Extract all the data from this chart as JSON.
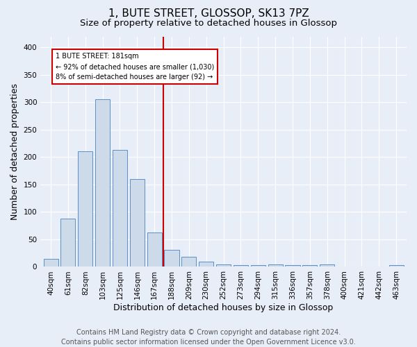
{
  "title1": "1, BUTE STREET, GLOSSOP, SK13 7PZ",
  "title2": "Size of property relative to detached houses in Glossop",
  "xlabel": "Distribution of detached houses by size in Glossop",
  "ylabel": "Number of detached properties",
  "footer1": "Contains HM Land Registry data © Crown copyright and database right 2024.",
  "footer2": "Contains public sector information licensed under the Open Government Licence v3.0.",
  "bin_labels": [
    "40sqm",
    "61sqm",
    "82sqm",
    "103sqm",
    "125sqm",
    "146sqm",
    "167sqm",
    "188sqm",
    "209sqm",
    "230sqm",
    "252sqm",
    "273sqm",
    "294sqm",
    "315sqm",
    "336sqm",
    "357sqm",
    "378sqm",
    "400sqm",
    "421sqm",
    "442sqm",
    "463sqm"
  ],
  "bar_heights": [
    15,
    88,
    210,
    305,
    213,
    160,
    63,
    31,
    18,
    9,
    5,
    3,
    3,
    4,
    3,
    3,
    4,
    1,
    1,
    1,
    3
  ],
  "bar_color": "#ccdaea",
  "bar_edge_color": "#5b8fc9",
  "bar_edge_width": 0.7,
  "vline_color": "#cc0000",
  "vline_x_idx": 7,
  "annotation_text": "1 BUTE STREET: 181sqm\n← 92% of detached houses are smaller (1,030)\n8% of semi-detached houses are larger (92) →",
  "annotation_box_color": "white",
  "annotation_edge_color": "#cc0000",
  "ylim": [
    0,
    420
  ],
  "yticks": [
    0,
    50,
    100,
    150,
    200,
    250,
    300,
    350,
    400
  ],
  "bg_color": "#e8eef8",
  "grid_color": "white",
  "title1_fontsize": 11,
  "title2_fontsize": 9.5,
  "xlabel_fontsize": 9,
  "ylabel_fontsize": 9,
  "footer_fontsize": 7,
  "tick_fontsize": 7.5
}
